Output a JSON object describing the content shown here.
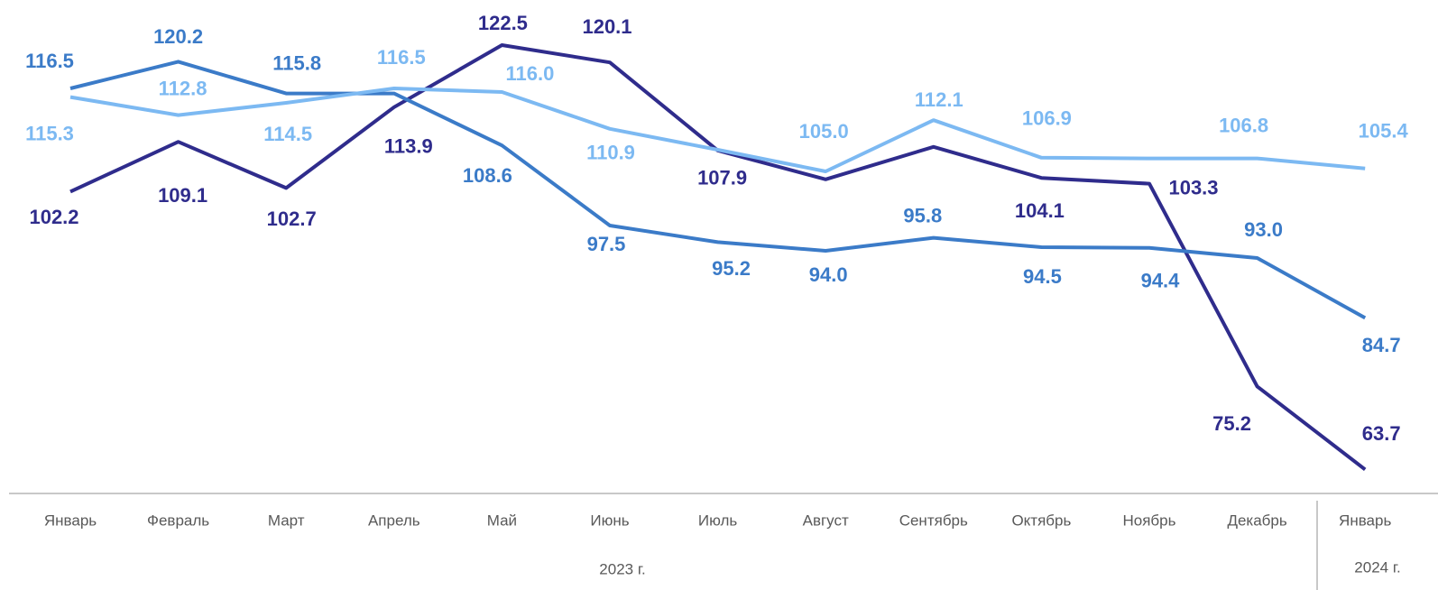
{
  "chart_data": {
    "type": "line",
    "categories": [
      "Январь",
      "Февраль",
      "Март",
      "Апрель",
      "Май",
      "Июнь",
      "Июль",
      "Август",
      "Сентябрь",
      "Октябрь",
      "Ноябрь",
      "Декабрь",
      "Январь"
    ],
    "group_labels": [
      "2023 г.",
      "2024 г."
    ],
    "ylim": [
      60,
      125
    ],
    "series": [
      {
        "color": "#2f2c8c",
        "values": [
          102.2,
          109.1,
          102.7,
          113.9,
          122.5,
          120.1,
          107.9,
          103.9,
          108.4,
          104.1,
          103.3,
          75.2,
          63.7
        ],
        "value_labels": [
          "102.2",
          "109.1",
          "102.7",
          "113.9",
          "122.5",
          "120.1",
          "107.9",
          null,
          null,
          "104.1",
          "103.3",
          "75.2",
          "63.7"
        ]
      },
      {
        "color": "#3b7bc8",
        "values": [
          116.5,
          120.2,
          115.8,
          115.8,
          108.6,
          97.5,
          95.2,
          94.0,
          95.8,
          94.5,
          94.4,
          93.0,
          84.7
        ],
        "value_labels": [
          "116.5",
          "120.2",
          "115.8",
          null,
          "108.6",
          "97.5",
          "95.2",
          "94.0",
          "95.8",
          "94.5",
          "94.4",
          "93.0",
          "84.7"
        ]
      },
      {
        "color": "#7cb9f2",
        "values": [
          115.3,
          112.8,
          114.5,
          116.5,
          116.0,
          110.9,
          108.0,
          105.0,
          112.1,
          106.9,
          106.8,
          106.8,
          105.4
        ],
        "value_labels": [
          "115.3",
          "112.8",
          "114.5",
          "116.5",
          "116.0",
          "110.9",
          null,
          "105.0",
          "112.1",
          "106.9",
          null,
          "106.8",
          "105.4"
        ]
      }
    ]
  }
}
